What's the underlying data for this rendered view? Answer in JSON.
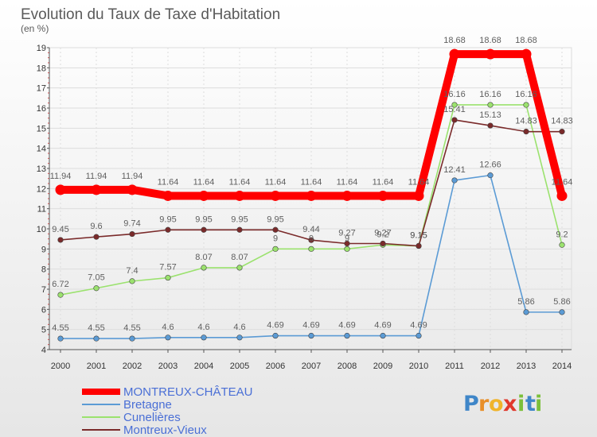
{
  "header": {
    "title": "Evolution du Taux de Taxe d'Habitation",
    "unit": "(en %)"
  },
  "logo": {
    "letters": [
      "P",
      "r",
      "o",
      "x",
      "i",
      "t",
      "i"
    ],
    "colors": [
      "#3f86c8",
      "#e88f2a",
      "#f0b42a",
      "#e0382c",
      "#7bbf3a",
      "#3f86c8",
      "#7bbf3a"
    ]
  },
  "chart_data": {
    "type": "line",
    "title": "Evolution du Taux de Taxe d'Habitation",
    "ylabel": "(en %)",
    "xlabel": "",
    "x": [
      "2000",
      "2001",
      "2002",
      "2003",
      "2004",
      "2005",
      "2006",
      "2007",
      "2008",
      "2009",
      "2010",
      "2011",
      "2012",
      "2013",
      "2014"
    ],
    "ylim": [
      4,
      19
    ],
    "yticks": [
      "4",
      "5",
      "6",
      "7",
      "8",
      "9",
      "10",
      "11",
      "12",
      "13",
      "14",
      "15",
      "16",
      "17",
      "18",
      "19"
    ],
    "grid": true,
    "legend_position": "bottom-left",
    "series": [
      {
        "name": "MONTREUX-CHÂTEAU",
        "color": "#ff0000",
        "values": [
          11.94,
          11.94,
          11.94,
          11.64,
          11.64,
          11.64,
          11.64,
          11.64,
          11.64,
          11.64,
          11.64,
          18.68,
          18.68,
          18.68,
          11.64
        ],
        "labels": [
          "11.94",
          "11.94",
          "11.94",
          "11.64",
          "11.64",
          "11.64",
          "11.64",
          "11.64",
          "11.64",
          "11.64",
          "11.64",
          "18.68",
          "18.68",
          "18.68",
          "11.64"
        ]
      },
      {
        "name": "Bretagne",
        "color": "#5b9bd5",
        "values": [
          4.55,
          4.55,
          4.55,
          4.6,
          4.6,
          4.6,
          4.69,
          4.69,
          4.69,
          4.69,
          4.69,
          12.41,
          12.66,
          5.86,
          5.86
        ],
        "labels": [
          "4.55",
          "4.55",
          "4.55",
          "4.6",
          "4.6",
          "4.6",
          "4.69",
          "4.69",
          "4.69",
          "4.69",
          "4.69",
          "12.41",
          "12.66",
          "5.86",
          "5.86"
        ]
      },
      {
        "name": "Cunelières",
        "color": "#9be26e",
        "values": [
          6.72,
          7.05,
          7.4,
          7.57,
          8.07,
          8.07,
          9,
          9,
          9,
          9.2,
          9.15,
          16.16,
          16.16,
          16.16,
          9.2
        ],
        "labels": [
          "6.72",
          "7.05",
          "7.4",
          "7.57",
          "8.07",
          "8.07",
          "9",
          "9",
          "9",
          "9.2",
          "9.15",
          "16.16",
          "16.16",
          "16.16",
          "9.2"
        ]
      },
      {
        "name": "Montreux-Vieux",
        "color": "#7a2a2a",
        "values": [
          9.45,
          9.6,
          9.74,
          9.95,
          9.95,
          9.95,
          9.95,
          9.44,
          9.27,
          9.27,
          9.15,
          15.41,
          15.13,
          14.83,
          14.83
        ],
        "labels": [
          "9.45",
          "9.6",
          "9.74",
          "9.95",
          "9.95",
          "9.95",
          "9.95",
          "9.44",
          "9.27",
          "9.27",
          "9.15",
          "15.41",
          "15.13",
          "14.83",
          "14.83"
        ]
      }
    ]
  }
}
